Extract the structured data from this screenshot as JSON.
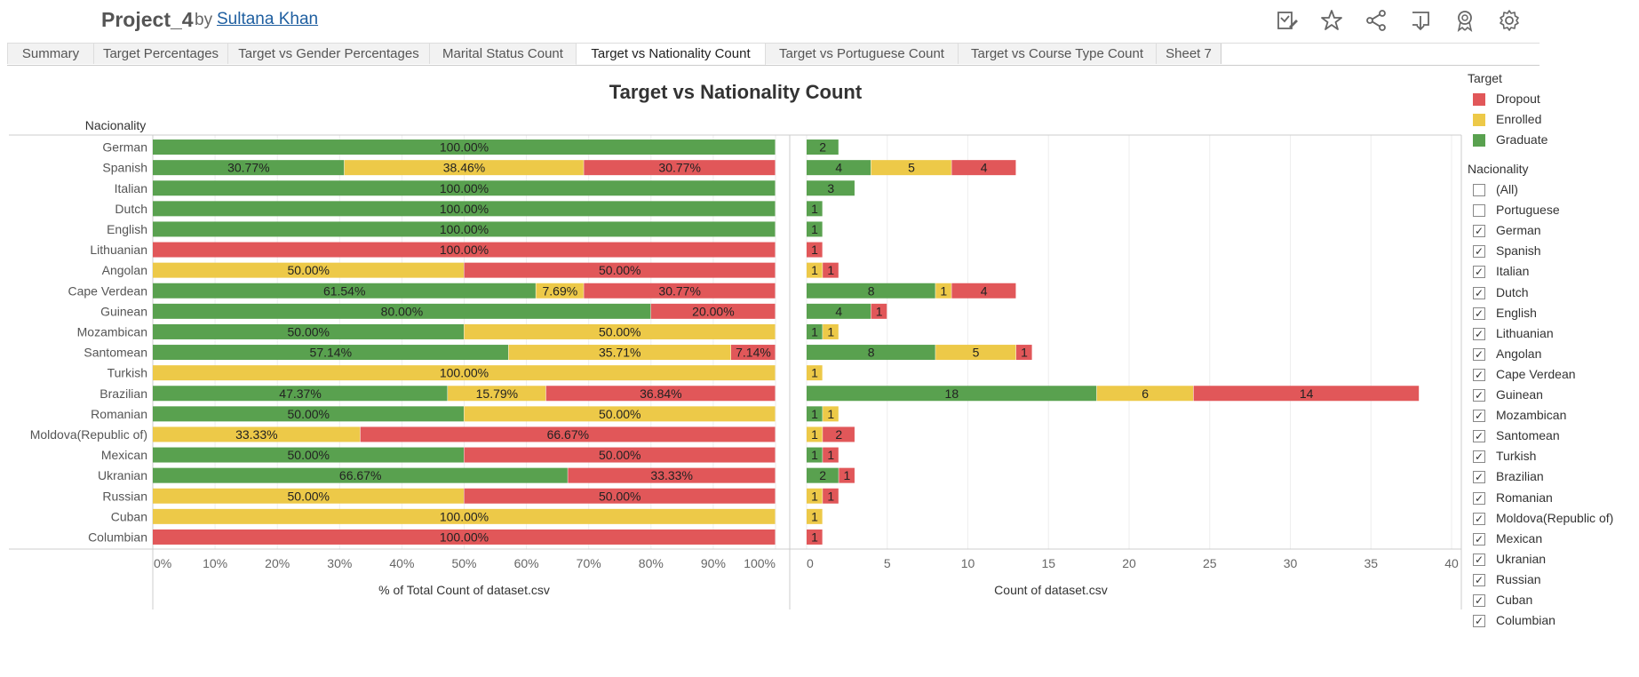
{
  "header": {
    "project_title": "Project_4",
    "by_label": "by",
    "author": "Sultana Khan",
    "icons": [
      "edit-icon",
      "star-icon",
      "share-icon",
      "download-icon",
      "badge-icon",
      "gear-icon"
    ]
  },
  "tabs": [
    {
      "label": "Summary",
      "active": false
    },
    {
      "label": "Target Percentages",
      "active": false
    },
    {
      "label": "Target vs Gender Percentages",
      "active": false
    },
    {
      "label": "Marital Status Count",
      "active": false
    },
    {
      "label": "Target vs Nationality Count",
      "active": true
    },
    {
      "label": "Target vs Portuguese Count",
      "active": false
    },
    {
      "label": "Target vs Course Type Count",
      "active": false
    },
    {
      "label": "Sheet 7",
      "active": false
    }
  ],
  "legend": {
    "target_title": "Target",
    "target_items": [
      {
        "label": "Dropout",
        "color": "#e15759"
      },
      {
        "label": "Enrolled",
        "color": "#edc948"
      },
      {
        "label": "Graduate",
        "color": "#59a14f"
      }
    ],
    "filter_title": "Nacionality",
    "filter_items": [
      {
        "label": "(All)",
        "checked": false
      },
      {
        "label": "Portuguese",
        "checked": false
      },
      {
        "label": "German",
        "checked": true
      },
      {
        "label": "Spanish",
        "checked": true
      },
      {
        "label": "Italian",
        "checked": true
      },
      {
        "label": "Dutch",
        "checked": true
      },
      {
        "label": "English",
        "checked": true
      },
      {
        "label": "Lithuanian",
        "checked": true
      },
      {
        "label": "Angolan",
        "checked": true
      },
      {
        "label": "Cape Verdean",
        "checked": true
      },
      {
        "label": "Guinean",
        "checked": true
      },
      {
        "label": "Mozambican",
        "checked": true
      },
      {
        "label": "Santomean",
        "checked": true
      },
      {
        "label": "Turkish",
        "checked": true
      },
      {
        "label": "Brazilian",
        "checked": true
      },
      {
        "label": "Romanian",
        "checked": true
      },
      {
        "label": "Moldova(Republic of)",
        "checked": true
      },
      {
        "label": "Mexican",
        "checked": true
      },
      {
        "label": "Ukranian",
        "checked": true
      },
      {
        "label": "Russian",
        "checked": true
      },
      {
        "label": "Cuban",
        "checked": true
      },
      {
        "label": "Columbian",
        "checked": true
      }
    ]
  },
  "chart_data": {
    "type": "bar",
    "orientation": "horizontal-stacked",
    "title": "Target vs Nationality Count",
    "row_header": "Nacionality",
    "stack_order": [
      "Graduate",
      "Enrolled",
      "Dropout"
    ],
    "colors": {
      "Graduate": "#59a14f",
      "Enrolled": "#edc948",
      "Dropout": "#e15759"
    },
    "categories": [
      "German",
      "Spanish",
      "Italian",
      "Dutch",
      "English",
      "Lithuanian",
      "Angolan",
      "Cape Verdean",
      "Guinean",
      "Mozambican",
      "Santomean",
      "Turkish",
      "Brazilian",
      "Romanian",
      "Moldova(Republic of)",
      "Mexican",
      "Ukranian",
      "Russian",
      "Cuban",
      "Columbian"
    ],
    "series": [
      {
        "name": "Graduate",
        "values": [
          2,
          4,
          3,
          1,
          1,
          0,
          0,
          8,
          4,
          1,
          8,
          0,
          18,
          1,
          0,
          1,
          2,
          0,
          0,
          0
        ]
      },
      {
        "name": "Enrolled",
        "values": [
          0,
          5,
          0,
          0,
          0,
          0,
          1,
          1,
          0,
          1,
          5,
          1,
          6,
          1,
          1,
          0,
          0,
          1,
          1,
          0
        ]
      },
      {
        "name": "Dropout",
        "values": [
          0,
          4,
          0,
          0,
          0,
          1,
          1,
          4,
          1,
          0,
          1,
          0,
          14,
          0,
          2,
          1,
          1,
          1,
          0,
          1
        ]
      }
    ],
    "percent_labels": [
      [
        "100.00%"
      ],
      [
        "30.77%",
        "38.46%",
        "30.77%"
      ],
      [
        "100.00%"
      ],
      [
        "100.00%"
      ],
      [
        "100.00%"
      ],
      [
        "100.00%"
      ],
      [
        "50.00%",
        "50.00%"
      ],
      [
        "61.54%",
        "7.69%",
        "30.77%"
      ],
      [
        "80.00%",
        "20.00%"
      ],
      [
        "50.00%",
        "50.00%"
      ],
      [
        "57.14%",
        "35.71%",
        "7.14%"
      ],
      [
        "100.00%"
      ],
      [
        "47.37%",
        "15.79%",
        "36.84%"
      ],
      [
        "50.00%",
        "50.00%"
      ],
      [
        "33.33%",
        "66.67%"
      ],
      [
        "50.00%",
        "50.00%"
      ],
      [
        "66.67%",
        "33.33%"
      ],
      [
        "50.00%",
        "50.00%"
      ],
      [
        "100.00%"
      ],
      [
        "100.00%"
      ]
    ],
    "left_panel": {
      "xlabel": "% of Total Count of dataset.csv",
      "xlim": [
        0,
        100
      ],
      "ticks": [
        0,
        10,
        20,
        30,
        40,
        50,
        60,
        70,
        80,
        90,
        100
      ],
      "tick_labels": [
        "0%",
        "10%",
        "20%",
        "30%",
        "40%",
        "50%",
        "60%",
        "70%",
        "80%",
        "90%",
        "100%"
      ]
    },
    "right_panel": {
      "xlabel": "Count of dataset.csv",
      "xlim": [
        0,
        40
      ],
      "ticks": [
        0,
        5,
        10,
        15,
        20,
        25,
        30,
        35,
        40
      ],
      "tick_labels": [
        "0",
        "5",
        "10",
        "15",
        "20",
        "25",
        "30",
        "35",
        "40"
      ]
    },
    "grid": true,
    "legend_position": "right"
  }
}
